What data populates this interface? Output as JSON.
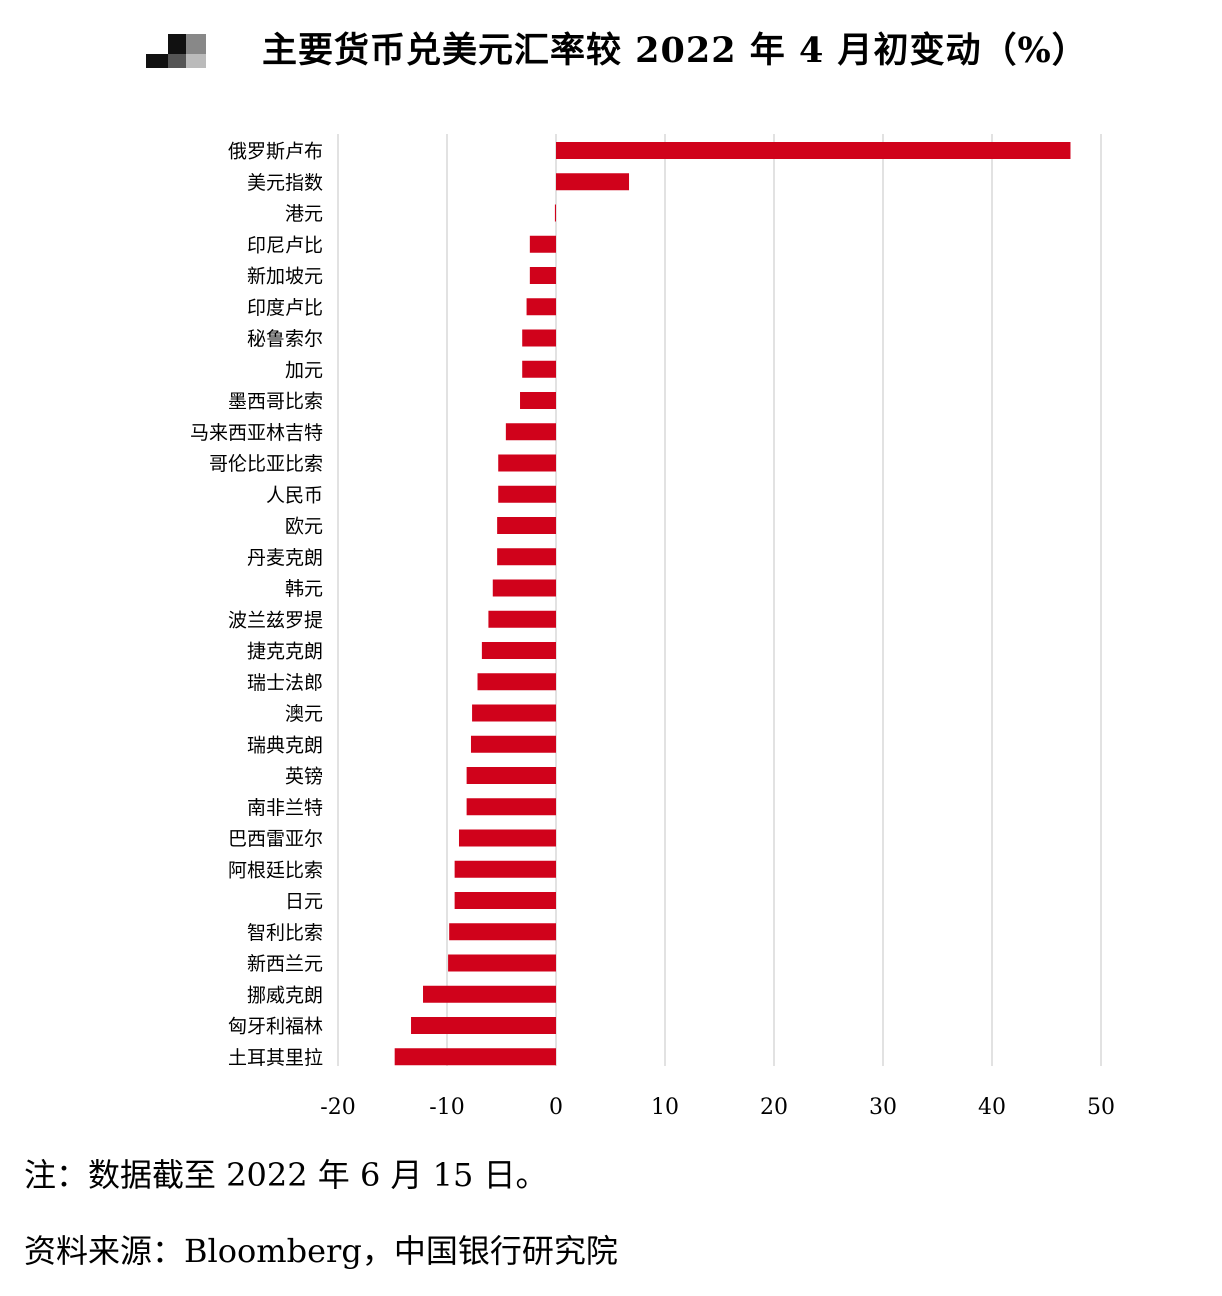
{
  "title": "主要货币兑美元汇率较 2022 年 4 月初变动（%）",
  "note": "注：数据截至 2022 年 6 月 15 日。",
  "source": "资料来源：Bloomberg，中国银行研究院",
  "colors": {
    "bar": "#d0021b",
    "grid": "#d9d9d9"
  },
  "chart_data": {
    "type": "bar",
    "orientation": "horizontal",
    "title": "主要货币兑美元汇率较 2022 年 4 月初变动（%）",
    "xlabel": "",
    "ylabel": "",
    "xlim": [
      -20,
      50
    ],
    "ticks": [
      -20,
      -10,
      0,
      10,
      20,
      30,
      40,
      50
    ],
    "grid": true,
    "categories": [
      "俄罗斯卢布",
      "美元指数",
      "港元",
      "印尼卢比",
      "新加坡元",
      "印度卢比",
      "秘鲁索尔",
      "加元",
      "墨西哥比索",
      "马来西亚林吉特",
      "哥伦比亚比索",
      "人民币",
      "欧元",
      "丹麦克朗",
      "韩元",
      "波兰兹罗提",
      "捷克克朗",
      "瑞士法郎",
      "澳元",
      "瑞典克朗",
      "英镑",
      "南非兰特",
      "巴西雷亚尔",
      "阿根廷比索",
      "日元",
      "智利比索",
      "新西兰元",
      "挪威克朗",
      "匈牙利福林",
      "土耳其里拉"
    ],
    "values": [
      47.2,
      6.7,
      -0.1,
      -2.4,
      -2.4,
      -2.7,
      -3.1,
      -3.1,
      -3.3,
      -4.6,
      -5.3,
      -5.3,
      -5.4,
      -5.4,
      -5.8,
      -6.2,
      -6.8,
      -7.2,
      -7.7,
      -7.8,
      -8.2,
      -8.2,
      -8.9,
      -9.3,
      -9.3,
      -9.8,
      -9.9,
      -12.2,
      -13.3,
      -14.8
    ]
  }
}
